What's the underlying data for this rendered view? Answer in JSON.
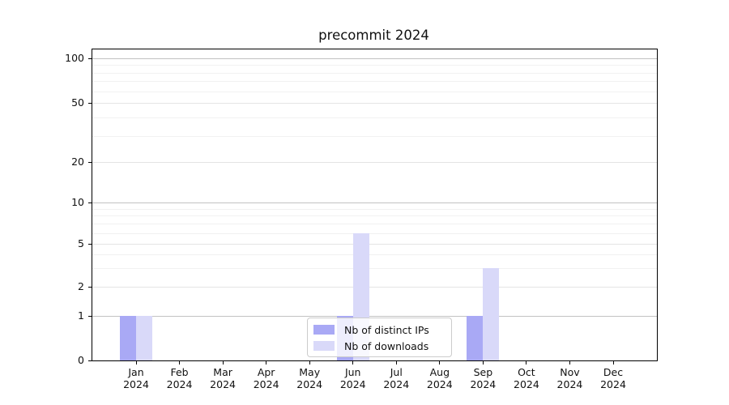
{
  "title": "precommit 2024",
  "chart_data": {
    "type": "bar",
    "title": "precommit 2024",
    "categories": [
      "Jan 2024",
      "Feb 2024",
      "Mar 2024",
      "Apr 2024",
      "May 2024",
      "Jun 2024",
      "Jul 2024",
      "Aug 2024",
      "Sep 2024",
      "Oct 2024",
      "Nov 2024",
      "Dec 2024"
    ],
    "series": [
      {
        "name": "Nb of distinct IPs",
        "color": "#a9a9f5",
        "values": [
          1,
          0,
          0,
          0,
          0,
          1,
          0,
          0,
          1,
          0,
          0,
          0
        ]
      },
      {
        "name": "Nb of downloads",
        "color": "#d9d9f9",
        "values": [
          1,
          0,
          0,
          0,
          0,
          6,
          0,
          0,
          3,
          0,
          0,
          0
        ]
      }
    ],
    "yscale": "symlog",
    "yticks": [
      0,
      1,
      2,
      5,
      10,
      20,
      50,
      100
    ],
    "ytick_labels": [
      "0",
      "1",
      "2",
      "5",
      "10",
      "20",
      "50",
      "100"
    ],
    "minor_yticks": [
      3,
      4,
      6,
      7,
      8,
      9,
      30,
      40,
      60,
      70,
      80,
      90
    ],
    "ylim": [
      0,
      115
    ],
    "xlabel": "",
    "ylabel": "",
    "grid": "horizontal, major and minor",
    "legend_position": "inside lower center",
    "colors": {
      "major_gridline": "#c2c2c2",
      "labeled_gridline": "#e4e4e4",
      "minor_gridline": "#f1f1f1",
      "axis": "#000000",
      "legend_border": "#cccccc"
    }
  }
}
